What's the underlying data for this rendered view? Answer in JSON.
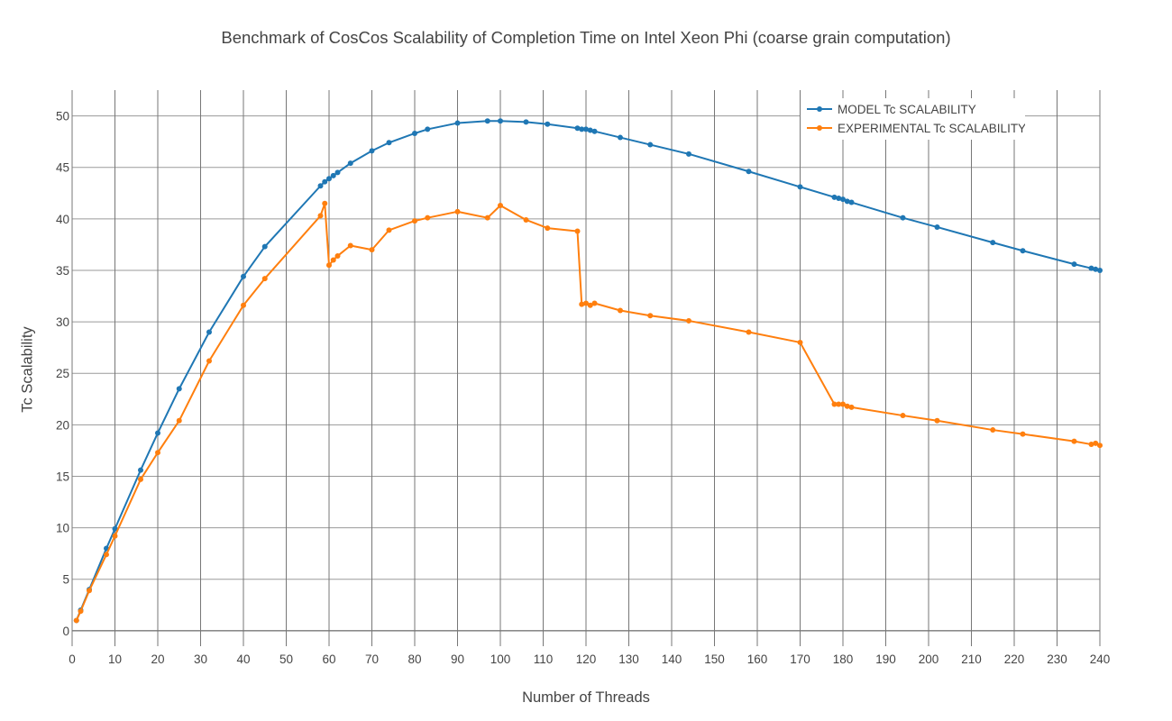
{
  "chart_data": {
    "type": "line",
    "title": "Benchmark of CosCos Scalability of Completion Time on Intel Xeon Phi (coarse grain computation)",
    "xlabel": "Number of Threads",
    "ylabel": "Tc Scalability",
    "xlim": [
      0,
      240
    ],
    "ylim": [
      -1.5,
      52.5
    ],
    "x_ticks": [
      0,
      10,
      20,
      30,
      40,
      50,
      60,
      70,
      80,
      90,
      100,
      110,
      120,
      130,
      140,
      150,
      160,
      170,
      180,
      190,
      200,
      210,
      220,
      230,
      240
    ],
    "y_ticks": [
      0,
      5,
      10,
      15,
      20,
      25,
      30,
      35,
      40,
      45,
      50
    ],
    "grid": true,
    "legend_position": "top-right",
    "series": [
      {
        "name": "MODEL Tc SCALABILITY",
        "color": "#1f77b4",
        "points": [
          [
            1,
            1
          ],
          [
            2,
            2
          ],
          [
            4,
            4
          ],
          [
            8,
            8
          ],
          [
            10,
            9.9
          ],
          [
            16,
            15.6
          ],
          [
            20,
            19.2
          ],
          [
            25,
            23.5
          ],
          [
            32,
            29
          ],
          [
            40,
            34.4
          ],
          [
            45,
            37.3
          ],
          [
            58,
            43.2
          ],
          [
            59,
            43.6
          ],
          [
            60,
            43.9
          ],
          [
            61,
            44.2
          ],
          [
            62,
            44.5
          ],
          [
            65,
            45.4
          ],
          [
            70,
            46.6
          ],
          [
            74,
            47.4
          ],
          [
            80,
            48.3
          ],
          [
            83,
            48.7
          ],
          [
            90,
            49.3
          ],
          [
            97,
            49.5
          ],
          [
            100,
            49.5
          ],
          [
            106,
            49.4
          ],
          [
            111,
            49.2
          ],
          [
            118,
            48.8
          ],
          [
            119,
            48.7
          ],
          [
            120,
            48.7
          ],
          [
            121,
            48.6
          ],
          [
            122,
            48.5
          ],
          [
            128,
            47.9
          ],
          [
            135,
            47.2
          ],
          [
            144,
            46.3
          ],
          [
            158,
            44.6
          ],
          [
            170,
            43.1
          ],
          [
            178,
            42.1
          ],
          [
            179,
            42
          ],
          [
            180,
            41.9
          ],
          [
            181,
            41.7
          ],
          [
            182,
            41.6
          ],
          [
            194,
            40.1
          ],
          [
            202,
            39.2
          ],
          [
            215,
            37.7
          ],
          [
            222,
            36.9
          ],
          [
            234,
            35.6
          ],
          [
            238,
            35.2
          ],
          [
            239,
            35.1
          ],
          [
            240,
            35
          ]
        ]
      },
      {
        "name": "EXPERIMENTAL Tc SCALABILITY",
        "color": "#ff7f0e",
        "points": [
          [
            1,
            1
          ],
          [
            2,
            1.9
          ],
          [
            4,
            3.9
          ],
          [
            8,
            7.4
          ],
          [
            10,
            9.2
          ],
          [
            16,
            14.7
          ],
          [
            20,
            17.3
          ],
          [
            25,
            20.4
          ],
          [
            32,
            26.2
          ],
          [
            40,
            31.6
          ],
          [
            45,
            34.2
          ],
          [
            58,
            40.3
          ],
          [
            59,
            41.5
          ],
          [
            60,
            35.5
          ],
          [
            61,
            36
          ],
          [
            62,
            36.4
          ],
          [
            65,
            37.4
          ],
          [
            70,
            37
          ],
          [
            74,
            38.9
          ],
          [
            80,
            39.8
          ],
          [
            83,
            40.1
          ],
          [
            90,
            40.7
          ],
          [
            97,
            40.1
          ],
          [
            100,
            41.3
          ],
          [
            106,
            39.9
          ],
          [
            111,
            39.1
          ],
          [
            118,
            38.8
          ],
          [
            119,
            31.7
          ],
          [
            120,
            31.8
          ],
          [
            121,
            31.6
          ],
          [
            122,
            31.8
          ],
          [
            128,
            31.1
          ],
          [
            135,
            30.6
          ],
          [
            144,
            30.1
          ],
          [
            158,
            29
          ],
          [
            170,
            28
          ],
          [
            178,
            22
          ],
          [
            179,
            22
          ],
          [
            180,
            22
          ],
          [
            181,
            21.8
          ],
          [
            182,
            21.7
          ],
          [
            194,
            20.9
          ],
          [
            202,
            20.4
          ],
          [
            215,
            19.5
          ],
          [
            222,
            19.1
          ],
          [
            234,
            18.4
          ],
          [
            238,
            18.1
          ],
          [
            239,
            18.2
          ],
          [
            240,
            18
          ]
        ]
      }
    ]
  }
}
